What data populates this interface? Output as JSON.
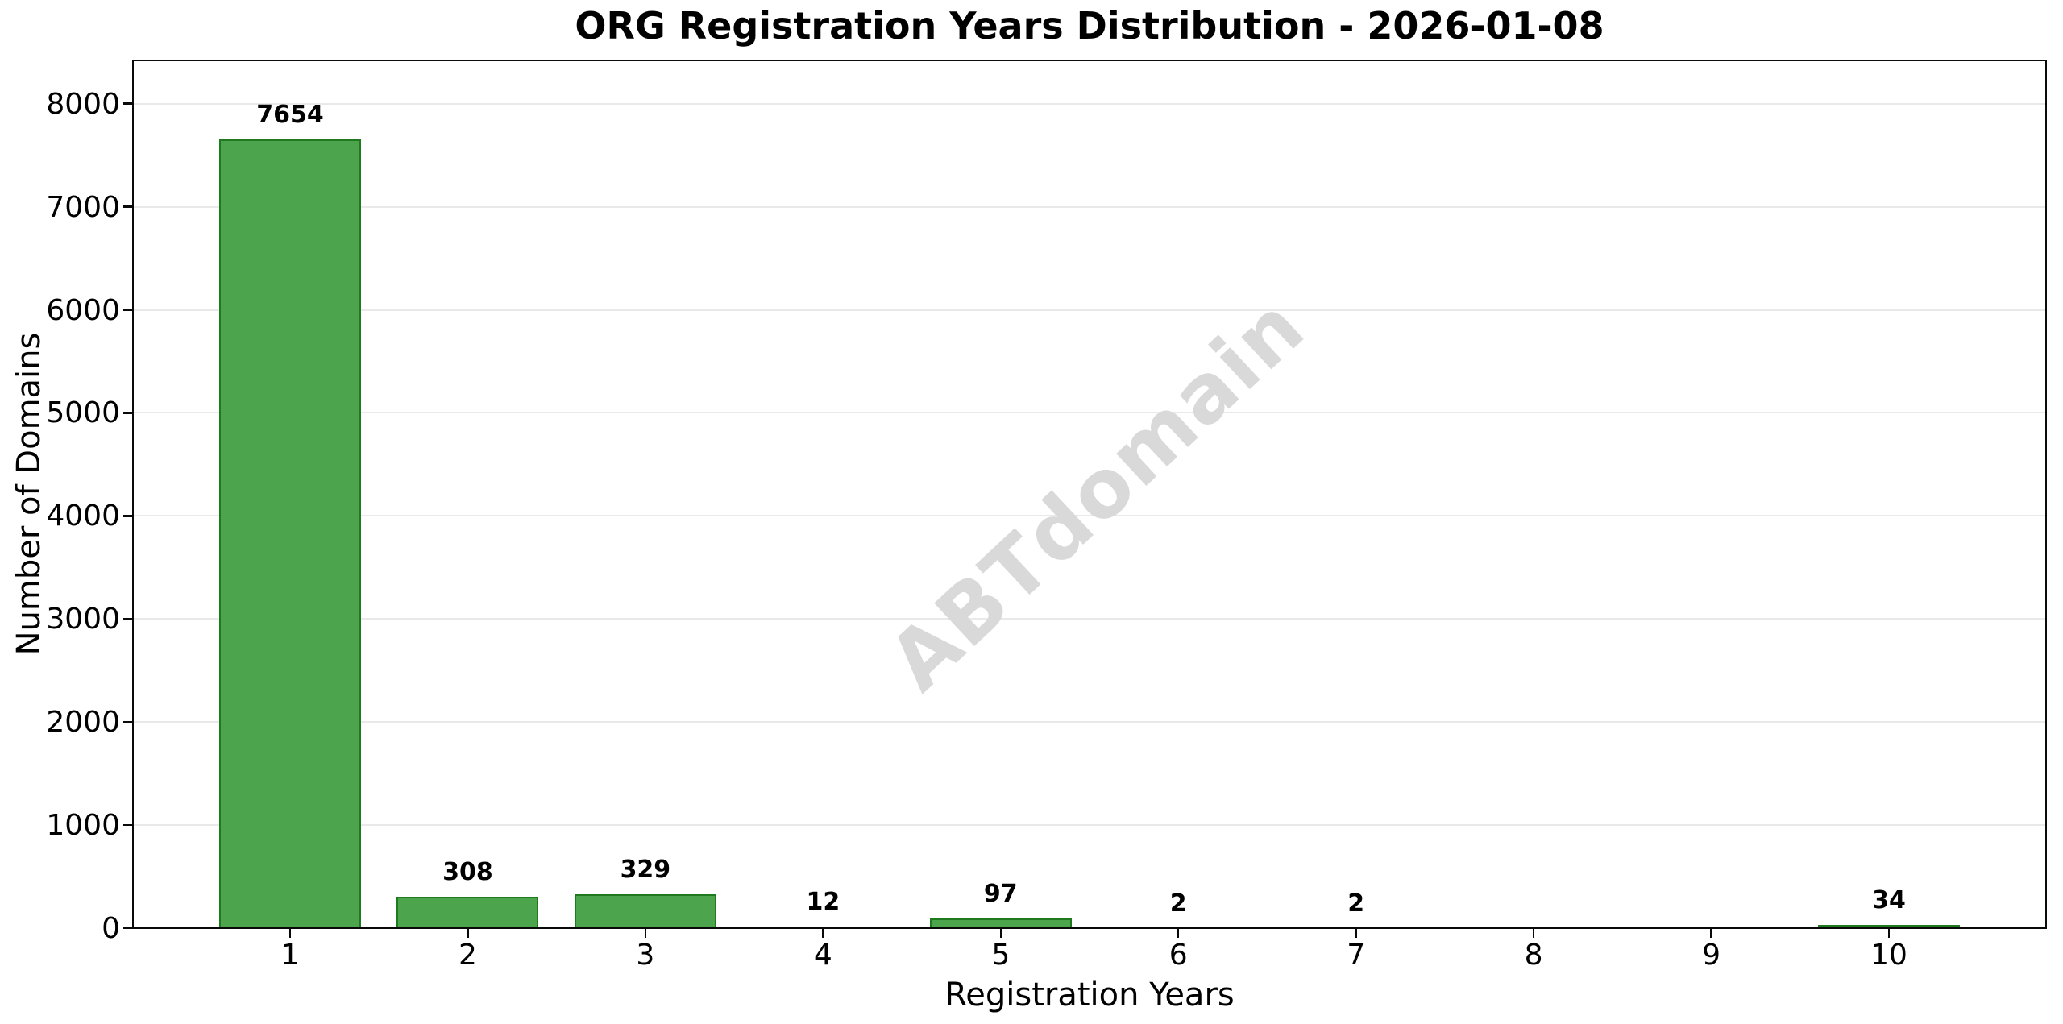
{
  "figure": {
    "background": "#ffffff"
  },
  "chart_data": {
    "type": "bar",
    "title": "ORG Registration Years Distribution - 2026-01-08",
    "xlabel": "Registration Years",
    "ylabel": "Number of Domains",
    "watermark": "ABTdomain",
    "categories": [
      "1",
      "2",
      "3",
      "4",
      "5",
      "6",
      "7",
      "8",
      "9",
      "10"
    ],
    "values": [
      7654,
      308,
      329,
      12,
      97,
      2,
      2,
      0,
      0,
      34
    ],
    "bar_value_labels": [
      "7654",
      "308",
      "329",
      "12",
      "97",
      "2",
      "2",
      "",
      "",
      "34"
    ],
    "ylim": [
      0,
      8420
    ],
    "yticks": [
      0,
      1000,
      2000,
      3000,
      4000,
      5000,
      6000,
      7000,
      8000
    ],
    "grid": true,
    "legend": "none",
    "colors": {
      "bar_fill": "#4CA44C",
      "bar_edge": "#1F7A1F",
      "gridline": "#e9e9e9",
      "axis": "#0a0a0a",
      "text": "#000000",
      "watermark": "#d9d9d9"
    }
  }
}
